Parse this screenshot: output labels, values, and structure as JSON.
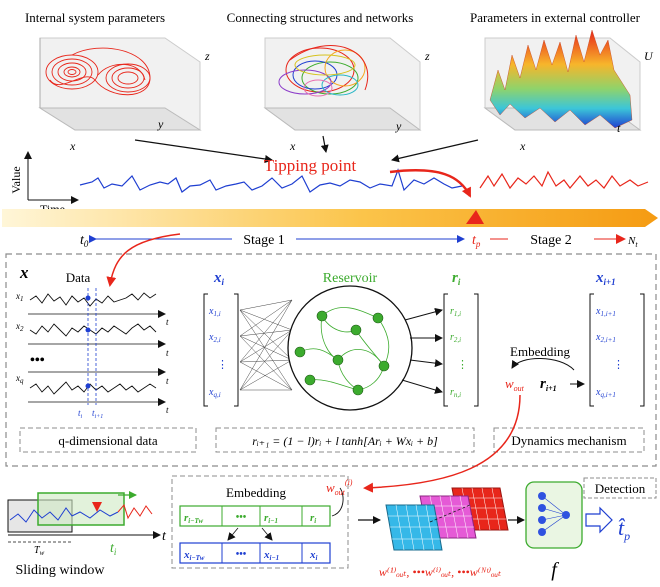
{
  "top_panels": {
    "internal_title": "Internal system parameters",
    "network_title": "Connecting structures and networks",
    "controller_title": "Parameters in external controller",
    "axis_x": "x",
    "axis_y": "y",
    "axis_z": "z",
    "axis_t": "t",
    "axis_u": "U"
  },
  "timeline": {
    "value_label": "Value",
    "time_label": "Time",
    "tipping_label": "Tipping point",
    "t0_label": "t",
    "t0_sub": "0",
    "stage1_label": "Stage 1",
    "tp_label": "t",
    "tp_sub": "p",
    "stage2_label": "Stage 2",
    "nt_label": "N",
    "nt_sub": "t"
  },
  "middle": {
    "x_label": "x",
    "data_label": "Data",
    "row_labels": [
      "x",
      "x",
      "x"
    ],
    "row_subs": [
      "1",
      "2",
      "q"
    ],
    "dots": "•••",
    "t_label": "t",
    "ti_label": "t",
    "ti_sub": "i",
    "ti1_label": "t",
    "ti1_sub": "i+1",
    "xi_label": "x",
    "xi_sub": "i",
    "xi_entries": [
      "x",
      "x",
      "x"
    ],
    "xi_entry_subs": [
      "1,i",
      "2,i",
      "q,i"
    ],
    "reservoir_label": "Reservoir",
    "ri_label": "r",
    "ri_sub": "i",
    "ri_entries": [
      "r",
      "r",
      "r"
    ],
    "ri_entry_subs": [
      "1,i",
      "2,i",
      "n,i"
    ],
    "embedding_label": "Embedding",
    "wout_label": "w",
    "wout_sub": "out",
    "r_next_label": "r",
    "r_next_sub": "i+1",
    "xi1_label": "x",
    "xi1_sub": "i+1",
    "xi1_entries": [
      "x",
      "x",
      "x"
    ],
    "xi1_entry_subs": [
      "1,i+1",
      "2,i+1",
      "q,i+1"
    ],
    "qdim_label": "q-dimensional data",
    "equation": "rᵢ₊₁ = (1 − l)rᵢ + l tanh[Arᵢ + Wxᵢ + b]",
    "dynamics_label": "Dynamics mechanism"
  },
  "bottom": {
    "sliding_label": "Sliding window",
    "tw_label": "T",
    "tw_sub": "w",
    "ti_label": "t",
    "ti_sub": "i",
    "t_label": "t",
    "embedding_label": "Embedding",
    "r_cells": [
      "r",
      "•••",
      "r",
      "r"
    ],
    "r_cell_subs": [
      "i−Tw",
      "",
      "i−1",
      "i"
    ],
    "x_cells": [
      "x",
      "•••",
      "x",
      "x"
    ],
    "x_cell_subs": [
      "i−Tw",
      "",
      "i−1",
      "i"
    ],
    "wout_label": "w",
    "wout_sub": "out",
    "wout_sup": "(i)",
    "wout_series": "w⁽¹⁾ₒᵤₜ, •••w⁽ⁱ⁾ₒᵤₜ, •••w⁽ᴺᵗ⁾ₒᵤₜ",
    "f_label": "f",
    "detection_label": "Detection",
    "tp_hat": "t̂",
    "tp_hat_sub": "p"
  },
  "colors": {
    "blue": "#1f3fd1",
    "red": "#e8261b",
    "green": "#3cab2e",
    "orange": "#f6a41c",
    "gray_dash": "#8c8c8c"
  }
}
